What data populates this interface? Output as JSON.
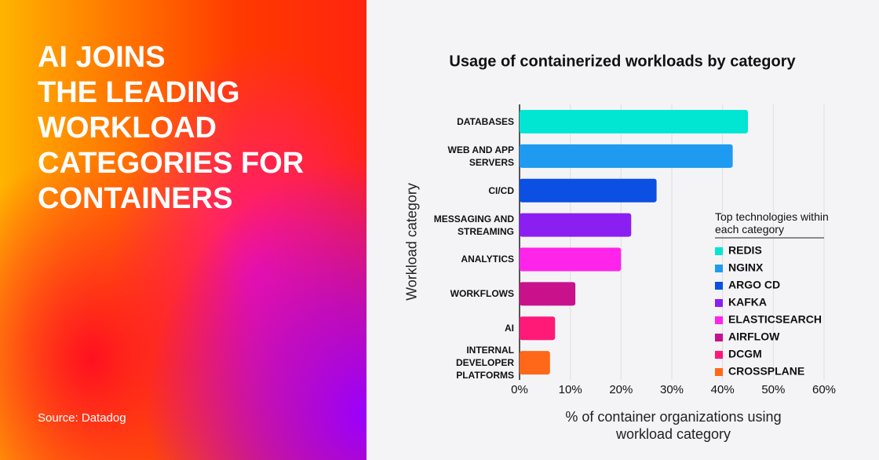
{
  "panel": {
    "headline": [
      "AI JOINS",
      "THE LEADING",
      "WORKLOAD",
      "CATEGORIES FOR",
      "CONTAINERS"
    ],
    "source": "Source: Datadog"
  },
  "chart_data": {
    "type": "bar",
    "orientation": "horizontal",
    "title": "Usage of containerized workloads by category",
    "y_label": "Workload category",
    "x_label": "% of container organizations using workload category",
    "categories": [
      "DATABASES",
      "WEB AND APP SERVERS",
      "CI/CD",
      "MESSAGING AND STREAMING",
      "ANALYTICS",
      "WORKFLOWS",
      "AI",
      "INTERNAL DEVELOPER PLATFORMS"
    ],
    "values": [
      45,
      42,
      27,
      22,
      20,
      11,
      7,
      6
    ],
    "colors": [
      "#00e6d2",
      "#1e9bf0",
      "#0b4fe3",
      "#8b1ff2",
      "#ff24ea",
      "#c9118c",
      "#ff1a78",
      "#ff6818"
    ],
    "legend_title": "Top technologies within each category",
    "legend": [
      "REDIS",
      "NGINX",
      "ARGO CD",
      "KAFKA",
      "ELASTICSEARCH",
      "AIRFLOW",
      "DCGM",
      "CROSSPLANE"
    ],
    "xlim": [
      0,
      60
    ],
    "xticks": [
      {
        "value": 0,
        "label": "0%"
      },
      {
        "value": 10,
        "label": "10%"
      },
      {
        "value": 20,
        "label": "20%"
      },
      {
        "value": 30,
        "label": "30%"
      },
      {
        "value": 40,
        "label": "40%"
      },
      {
        "value": 50,
        "label": "50%"
      },
      {
        "value": 60,
        "label": "60%"
      }
    ],
    "grid": true
  }
}
